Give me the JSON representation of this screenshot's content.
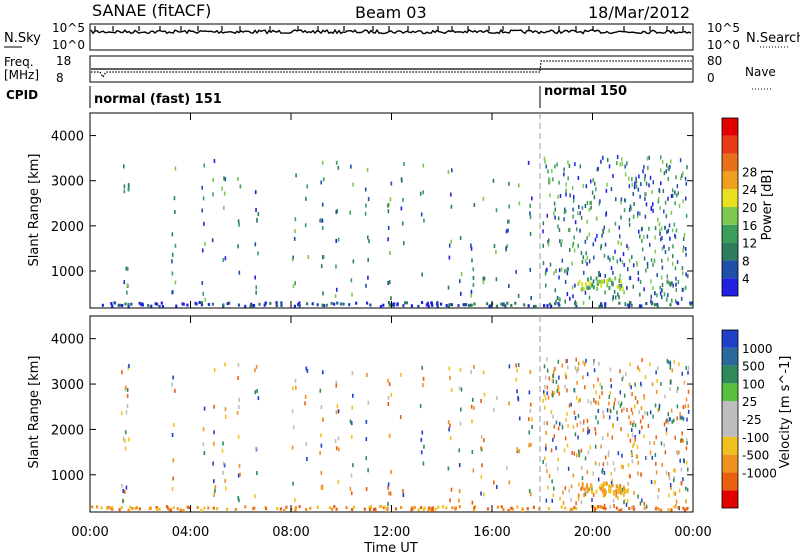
{
  "header": {
    "station": "SANAE (fitACF)",
    "beam": "Beam 03",
    "date": "18/Mar/2012"
  },
  "top_panels": {
    "nsky_label": "N.Sky",
    "nsky_ticks": [
      "10^5",
      "10^0"
    ],
    "nsearch_label": "N.Search",
    "nsearch_ticks": [
      "10^5",
      "10^0"
    ],
    "freq_label": "Freq.",
    "freq_unit": "[MHz]",
    "freq_ticks": [
      "18",
      "8"
    ],
    "nave_label": "Nave",
    "nave_ticks": [
      "80",
      "0"
    ],
    "cpid_label": "CPID",
    "cpid_segments": [
      {
        "label": "normal (fast) 151",
        "start_hour": 0,
        "end_hour": 18
      },
      {
        "label": "normal 150",
        "start_hour": 18,
        "end_hour": 24
      }
    ]
  },
  "colors": {
    "power_scale": [
      "#2020e0",
      "#1f4fa8",
      "#2e7d5a",
      "#3c9e5c",
      "#7cc850",
      "#e8e020",
      "#f0a020",
      "#e87018",
      "#e83a18",
      "#e00000"
    ],
    "velocity_scale": [
      "#2040c8",
      "#2a6a9a",
      "#2e8a5a",
      "#58c040",
      "#bdbdbd",
      "#bdbdbd",
      "#f0c020",
      "#f09020",
      "#e86010",
      "#e00000"
    ]
  },
  "chart_data": [
    {
      "type": "heatmap",
      "quantity": "Power",
      "ylabel": "Slant Range [km]",
      "xlabel": "Time UT",
      "x_ticks": [
        "00:00",
        "04:00",
        "08:00",
        "12:00",
        "16:00",
        "20:00",
        "00:00"
      ],
      "y_ticks": [
        1000,
        2000,
        3000,
        4000
      ],
      "xlim_hours": [
        0,
        24
      ],
      "ylim_km": [
        180,
        4500
      ],
      "colorbar": {
        "label": "Power [dB]",
        "ticks": [
          4,
          8,
          12,
          16,
          20,
          24,
          28
        ],
        "range": [
          0,
          30
        ]
      }
    },
    {
      "type": "heatmap",
      "quantity": "Velocity",
      "ylabel": "Slant Range [km]",
      "xlabel": "Time UT",
      "x_ticks": [
        "00:00",
        "04:00",
        "08:00",
        "12:00",
        "16:00",
        "20:00",
        "00:00"
      ],
      "y_ticks": [
        1000,
        2000,
        3000,
        4000
      ],
      "xlim_hours": [
        0,
        24
      ],
      "ylim_km": [
        180,
        4500
      ],
      "colorbar": {
        "label": "Velocity [m s^-1]",
        "ticks": [
          "1000",
          "500",
          "100",
          "25",
          "-25",
          "-100",
          "-500",
          "-1000"
        ]
      }
    }
  ]
}
